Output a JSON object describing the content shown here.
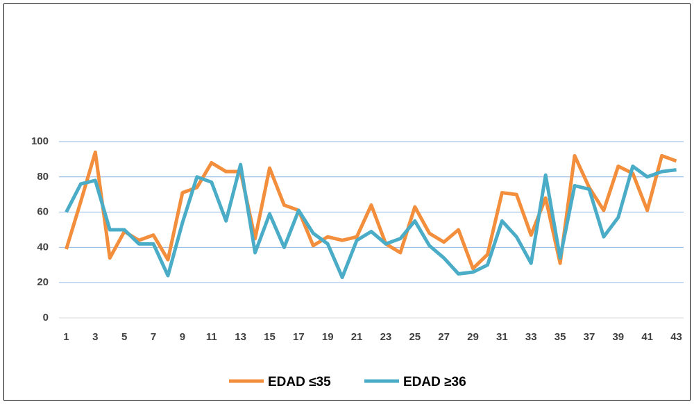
{
  "chart_data": {
    "type": "line",
    "categories": [
      "1",
      null,
      "3",
      null,
      "5",
      null,
      "7",
      null,
      "9",
      null,
      "11",
      null,
      "13",
      null,
      "15",
      null,
      "17",
      null,
      "19",
      null,
      "21",
      null,
      "23",
      null,
      "25",
      null,
      "27",
      null,
      "29",
      null,
      "31",
      null,
      "33",
      null,
      "35",
      null,
      "37",
      null,
      "39",
      null,
      "41",
      null,
      "43"
    ],
    "series": [
      {
        "name": "EDAD ≤35",
        "color": "#f28e3c",
        "values": [
          39,
          66,
          94,
          34,
          49,
          44,
          47,
          33,
          71,
          74,
          88,
          83,
          83,
          45,
          85,
          64,
          61,
          41,
          46,
          44,
          46,
          64,
          42,
          37,
          63,
          48,
          43,
          50,
          28,
          36,
          71,
          70,
          47,
          68,
          31,
          92,
          74,
          61,
          86,
          82,
          61,
          92,
          89
        ]
      },
      {
        "name": "EDAD ≥36",
        "color": "#4aacc6",
        "values": [
          60,
          76,
          78,
          50,
          50,
          42,
          42,
          24,
          54,
          80,
          77,
          55,
          87,
          37,
          59,
          40,
          61,
          48,
          42,
          23,
          44,
          49,
          42,
          45,
          55,
          41,
          34,
          25,
          26,
          30,
          55,
          46,
          31,
          81,
          34,
          75,
          73,
          46,
          57,
          86,
          80,
          83,
          84
        ]
      }
    ],
    "ylim": [
      0,
      100
    ],
    "yticks": [
      0,
      20,
      40,
      60,
      80,
      100
    ],
    "grid": true,
    "legend": "bottom"
  }
}
